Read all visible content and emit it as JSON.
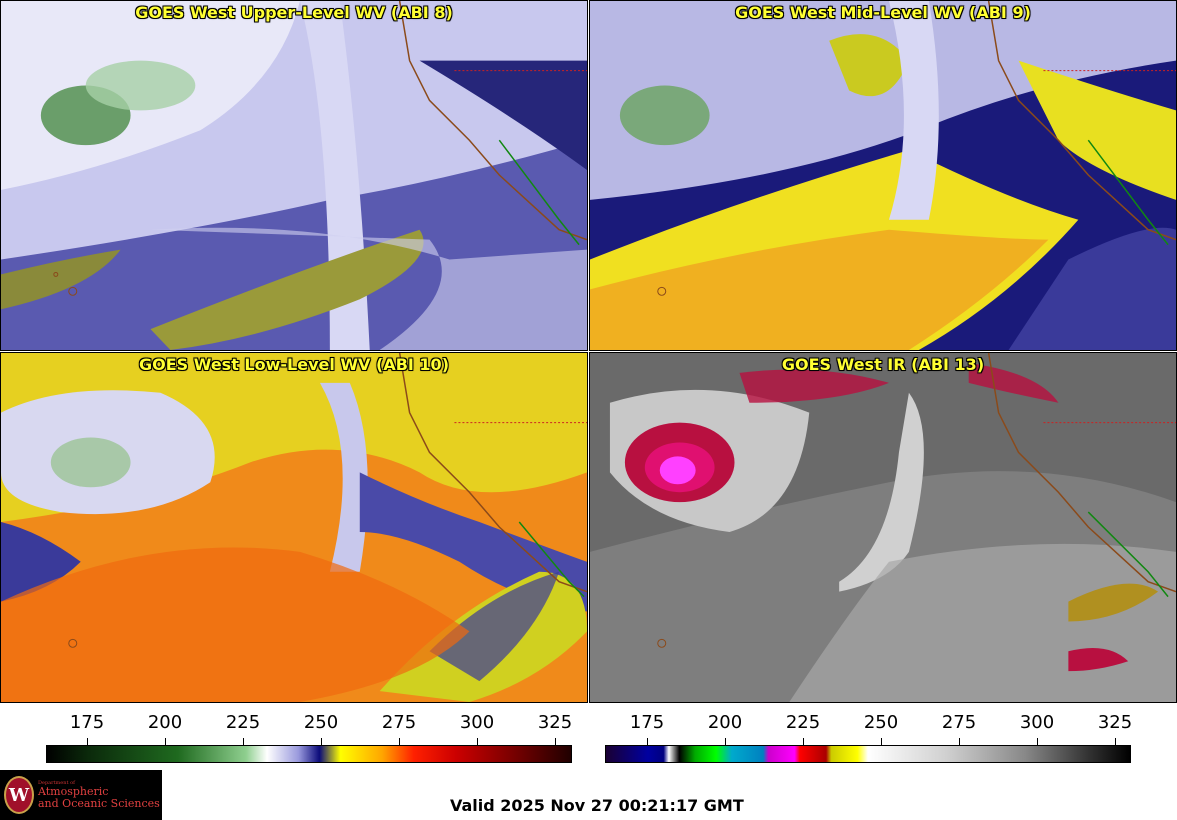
{
  "panels": [
    {
      "title": "GOES West Upper-Level WV (ABI 8)"
    },
    {
      "title": "GOES West Mid-Level WV (ABI 9)"
    },
    {
      "title": "GOES West Low-Level WV (ABI 10)"
    },
    {
      "title": "GOES West IR (ABI 13)"
    }
  ],
  "colorbars": [
    {
      "ticks": [
        "175",
        "200",
        "225",
        "250",
        "275",
        "300",
        "325"
      ]
    },
    {
      "ticks": [
        "175",
        "200",
        "225",
        "250",
        "275",
        "300",
        "325"
      ]
    }
  ],
  "logo": {
    "dept_label": "Department of",
    "line1": "Atmospheric",
    "line2": "and Oceanic Sciences",
    "seal_letter": "W"
  },
  "valid_time": "Valid 2025 Nov 27 00:21:17 GMT"
}
